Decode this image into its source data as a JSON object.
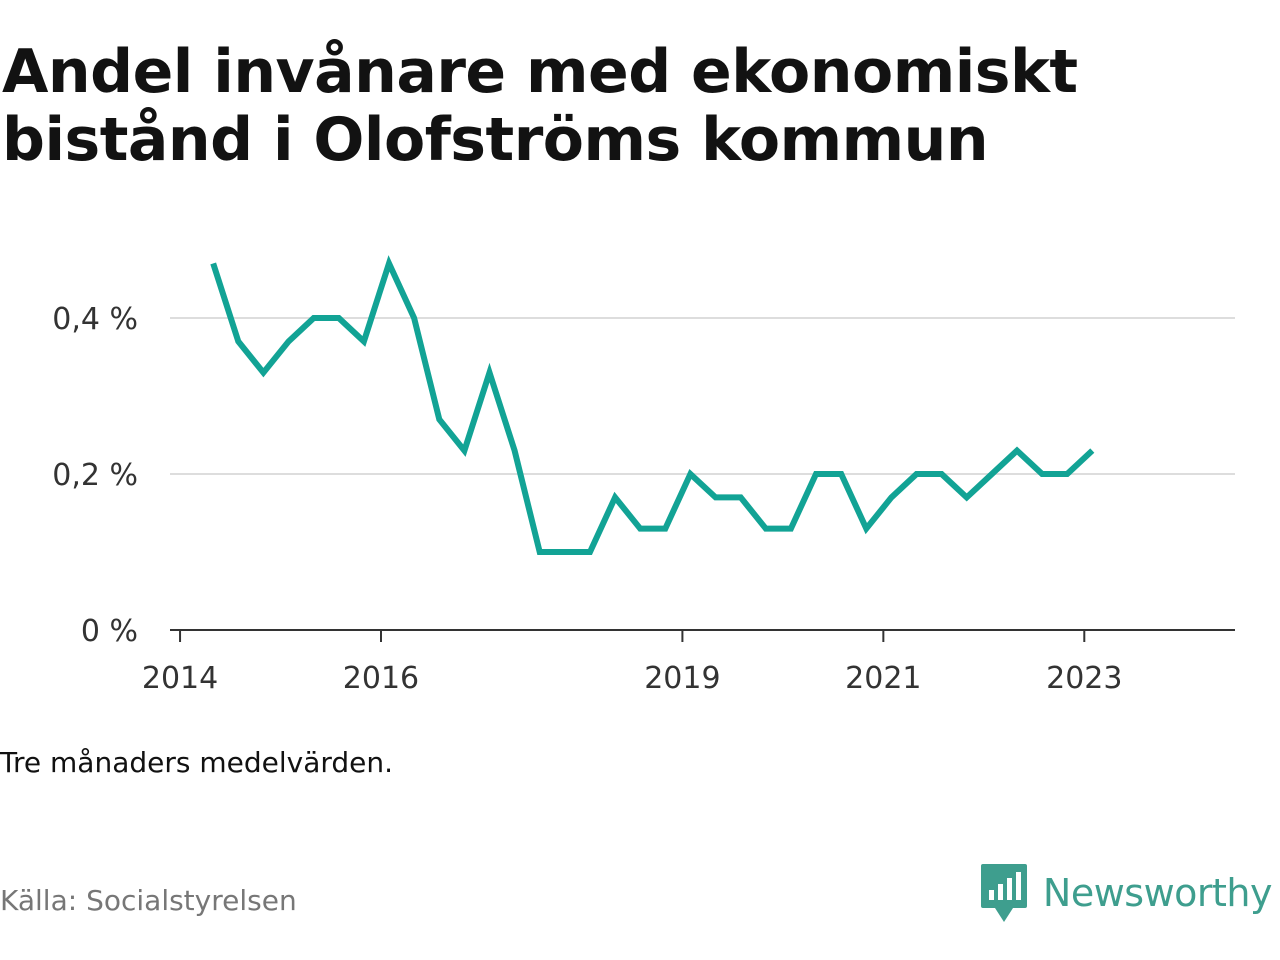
{
  "title": "Andel invånare med ekonomiskt bistånd i Olofströms kommun",
  "note": "Tre månaders medelvärden.",
  "source": "Källa: Socialstyrelsen",
  "brand": {
    "name": "Newsworthy",
    "icon": "newsworthy-logo-icon"
  },
  "colors": {
    "line": "#12a395",
    "grid": "#dddddd",
    "axis": "#333333",
    "brand": "#3e9e8e"
  },
  "chart_data": {
    "type": "line",
    "title": "Andel invånare med ekonomiskt bistånd i Olofströms kommun",
    "xlabel": "",
    "ylabel": "",
    "x_ticks": [
      "2014",
      "2016",
      "2019",
      "2021",
      "2023"
    ],
    "x_tick_values": [
      2014.0,
      2016.0,
      2019.0,
      2021.0,
      2023.0
    ],
    "y_ticks": [
      "0 %",
      "0,2 %",
      "0,4 %"
    ],
    "y_tick_values": [
      0,
      0.2,
      0.4
    ],
    "ylim": [
      0,
      0.5
    ],
    "xlim": [
      2013.9,
      2024.5
    ],
    "grid": true,
    "legend": "none",
    "series": [
      {
        "x": [
          2014.33,
          2014.58,
          2014.83,
          2015.08,
          2015.33,
          2015.58,
          2015.83,
          2016.08,
          2016.33,
          2016.58,
          2016.83,
          2017.08,
          2017.33,
          2017.58,
          2017.83,
          2018.08,
          2018.33,
          2018.58,
          2018.83,
          2019.08,
          2019.33,
          2019.58,
          2019.83,
          2020.08,
          2020.33,
          2020.58,
          2020.83,
          2021.08,
          2021.33,
          2021.58,
          2021.83,
          2022.08,
          2022.33,
          2022.58,
          2022.83,
          2023.08
        ],
        "values": [
          0.47,
          0.37,
          0.33,
          0.37,
          0.4,
          0.4,
          0.37,
          0.47,
          0.4,
          0.27,
          0.23,
          0.33,
          0.23,
          0.1,
          0.1,
          0.1,
          0.17,
          0.13,
          0.13,
          0.2,
          0.17,
          0.17,
          0.13,
          0.13,
          0.2,
          0.2,
          0.13,
          0.17,
          0.2,
          0.2,
          0.17,
          0.2,
          0.23,
          0.2,
          0.2,
          0.23
        ]
      }
    ]
  }
}
